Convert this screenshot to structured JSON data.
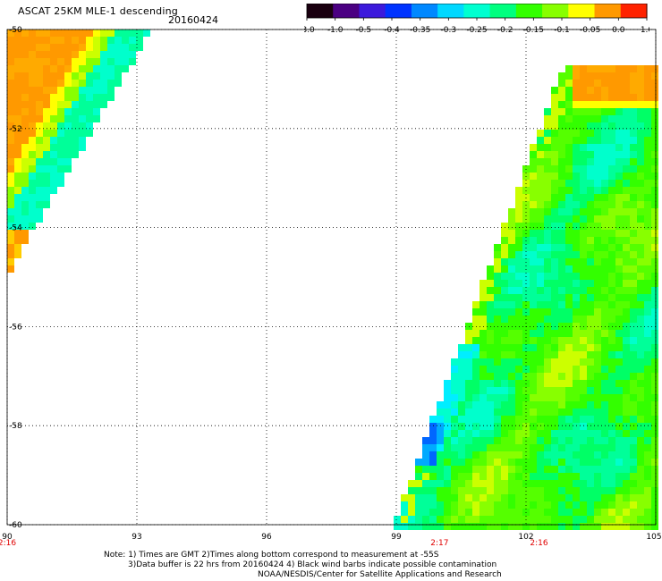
{
  "title": "ASCAT 25KM MLE-1 descending",
  "date": "20160424",
  "colorbar": {
    "labels": [
      "-3.0",
      "-1.0",
      "-0.5",
      "-0.4",
      "-0.35",
      "-0.3",
      "-0.25",
      "-0.2",
      "-0.15",
      "-0.1",
      "-0.05",
      "0.0",
      "1.0"
    ],
    "colors": [
      "#1a0010",
      "#4b0082",
      "#3c1adc",
      "#0033ff",
      "#0088ff",
      "#00d8ff",
      "#00ffd0",
      "#00ff7f",
      "#33ff00",
      "#88ff00",
      "#ffff00",
      "#ff9900",
      "#ff2200"
    ]
  },
  "axes": {
    "x_ticks": [
      "90",
      "93",
      "96",
      "99",
      "102",
      "105"
    ],
    "x_values": [
      90,
      93,
      96,
      99,
      102,
      105
    ],
    "y_ticks": [
      "-50",
      "-52",
      "-54",
      "-56",
      "-58",
      "-60"
    ],
    "y_values": [
      -50,
      -52,
      -54,
      -56,
      -58,
      -60
    ],
    "lon_range": [
      90,
      105
    ],
    "lat_range": [
      -60,
      -50
    ]
  },
  "times": [
    {
      "label": "2:16",
      "lon": 90
    },
    {
      "label": "2:17",
      "lon": 100.0
    },
    {
      "label": "2:16",
      "lon": 102.3
    }
  ],
  "notes": {
    "line1": "Note: 1) Times are GMT 2)Times along bottom correspond to measurement at -55S",
    "line2": "3)Data buffer is 22 hrs from 20160424 4) Black wind barbs indicate possible contamination",
    "line3": "NOAA/NESDIS/Center for Satellite Applications and Research"
  }
}
